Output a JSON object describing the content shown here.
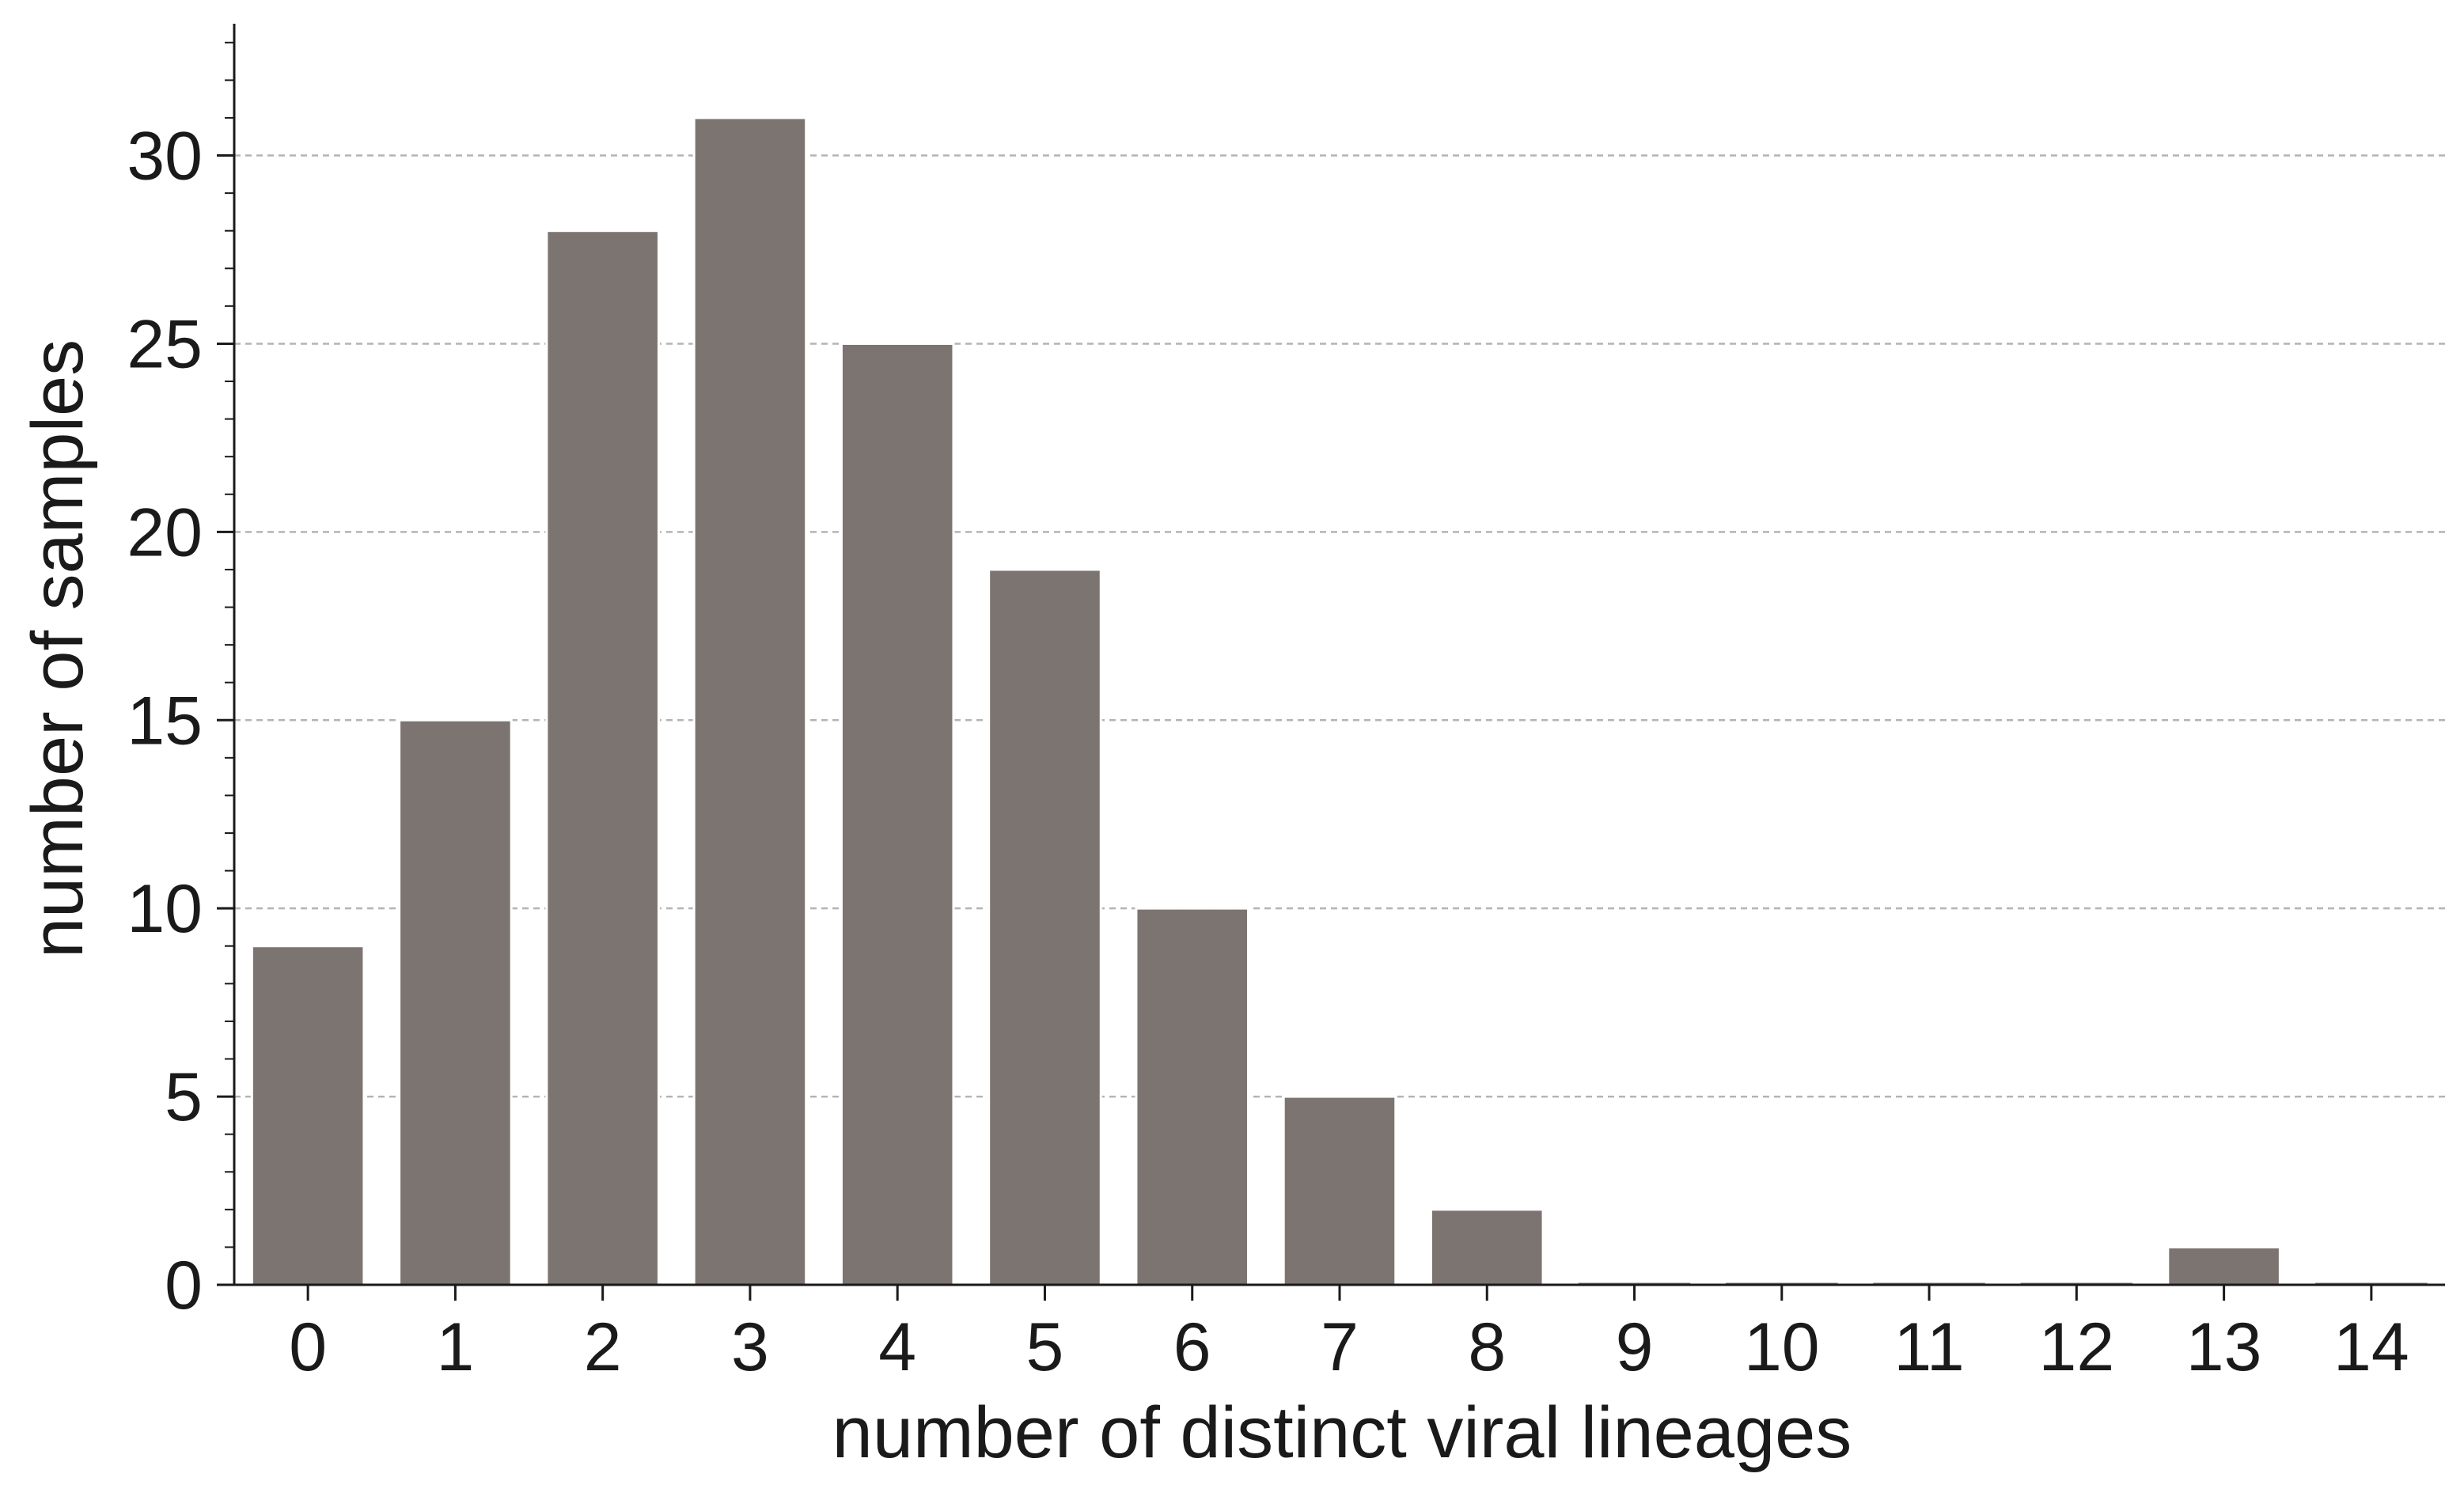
{
  "chart_data": {
    "type": "bar",
    "title": "",
    "xlabel": "number of distinct viral lineages",
    "ylabel": "number of samples",
    "categories": [
      "0",
      "1",
      "2",
      "3",
      "4",
      "5",
      "6",
      "7",
      "8",
      "9",
      "10",
      "11",
      "12",
      "13",
      "14"
    ],
    "values": [
      9,
      15,
      28,
      31,
      25,
      19,
      10,
      5,
      2,
      0,
      0,
      0,
      0,
      1,
      0
    ],
    "ylim": [
      0,
      33.5
    ],
    "yticks": [
      "0",
      "5",
      "10",
      "15",
      "20",
      "25",
      "30"
    ],
    "grid": "horizontal dashed at major y ticks",
    "legend": "none",
    "colors": {
      "bar": "#7c7471",
      "grid": "#b4b4b4",
      "axis": "#1a1a1a"
    }
  }
}
